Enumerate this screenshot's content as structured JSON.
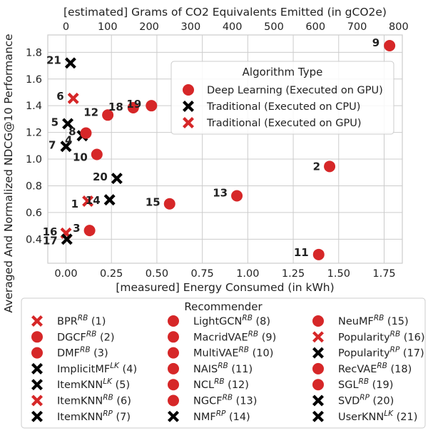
{
  "chart_data": {
    "type": "scatter",
    "xlabel": "[measured] Energy Consumed (in kWh)",
    "x2label": "[estimated] Grams of CO2 Equivalents Emitted (in gCO2e)",
    "ylabel": "Averaged And Normalized NDCG@10 Performance",
    "xlim": [
      -0.1,
      1.85
    ],
    "ylim": [
      0.22,
      1.93
    ],
    "x_ticks": [
      0.0,
      0.25,
      0.5,
      0.75,
      1.0,
      1.25,
      1.5,
      1.75
    ],
    "x_tick_labels": [
      "0.00",
      "0.25",
      "0.50",
      "0.75",
      "1.00",
      "1.25",
      "1.50",
      "1.75"
    ],
    "x2_ticks": [
      0,
      100,
      200,
      300,
      400,
      500,
      600,
      700,
      800
    ],
    "x2_tick_labels": [
      "0",
      "100",
      "200",
      "300",
      "400",
      "500",
      "600",
      "700",
      "800"
    ],
    "y_ticks": [
      0.4,
      0.6,
      0.8,
      1.0,
      1.2,
      1.4,
      1.6,
      1.8
    ],
    "y_tick_labels": [
      "0.4",
      "0.6",
      "0.8",
      "1.0",
      "1.2",
      "1.4",
      "1.6",
      "1.8"
    ],
    "grid": true,
    "colors": {
      "red": "#d62728",
      "black": "#000000",
      "grid": "#cccccc"
    },
    "algorithm_legend": {
      "title": "Algorithm Type",
      "placement": "upper-right",
      "entries": [
        {
          "label": "Deep Learning (Executed on GPU)",
          "marker": "circle",
          "color": "#d62728"
        },
        {
          "label": "Traditional (Executed on CPU)",
          "marker": "x",
          "color": "#000000"
        },
        {
          "label": "Traditional (Executed on GPU)",
          "marker": "x",
          "color": "#d62728"
        }
      ]
    },
    "recommender_legend": {
      "title": "Recommender",
      "placement": "below",
      "entries": [
        {
          "name": "BPR",
          "sup": "RB",
          "id": "(1)",
          "marker": "x",
          "color": "#d62728"
        },
        {
          "name": "DGCF",
          "sup": "RB",
          "id": "(2)",
          "marker": "circle",
          "color": "#d62728"
        },
        {
          "name": "DMF",
          "sup": "RB",
          "id": "(3)",
          "marker": "circle",
          "color": "#d62728"
        },
        {
          "name": "ImplicitMF",
          "sup": "LK",
          "id": "(4)",
          "marker": "x",
          "color": "#000000"
        },
        {
          "name": "ItemKNN",
          "sup": "LK",
          "id": "(5)",
          "marker": "x",
          "color": "#000000"
        },
        {
          "name": "ItemKNN",
          "sup": "RB",
          "id": "(6)",
          "marker": "x",
          "color": "#d62728"
        },
        {
          "name": "ItemKNN",
          "sup": "RP",
          "id": "(7)",
          "marker": "x",
          "color": "#000000"
        },
        {
          "name": "LightGCN",
          "sup": "RB",
          "id": "(8)",
          "marker": "circle",
          "color": "#d62728"
        },
        {
          "name": "MacridVAE",
          "sup": "RB",
          "id": "(9)",
          "marker": "circle",
          "color": "#d62728"
        },
        {
          "name": "MultiVAE",
          "sup": "RB",
          "id": "(10)",
          "marker": "circle",
          "color": "#d62728"
        },
        {
          "name": "NAIS",
          "sup": "RB",
          "id": "(11)",
          "marker": "circle",
          "color": "#d62728"
        },
        {
          "name": "NCL",
          "sup": "RB",
          "id": "(12)",
          "marker": "circle",
          "color": "#d62728"
        },
        {
          "name": "NGCF",
          "sup": "RB",
          "id": "(13)",
          "marker": "circle",
          "color": "#d62728"
        },
        {
          "name": "NMF",
          "sup": "RP",
          "id": "(14)",
          "marker": "x",
          "color": "#000000"
        },
        {
          "name": "NeuMF",
          "sup": "RB",
          "id": "(15)",
          "marker": "circle",
          "color": "#d62728"
        },
        {
          "name": "Popularity",
          "sup": "RB",
          "id": "(16)",
          "marker": "x",
          "color": "#d62728"
        },
        {
          "name": "Popularity",
          "sup": "RP",
          "id": "(17)",
          "marker": "x",
          "color": "#000000"
        },
        {
          "name": "RecVAE",
          "sup": "RB",
          "id": "(18)",
          "marker": "circle",
          "color": "#d62728"
        },
        {
          "name": "SGL",
          "sup": "RB",
          "id": "(19)",
          "marker": "circle",
          "color": "#d62728"
        },
        {
          "name": "SVD",
          "sup": "RP",
          "id": "(20)",
          "marker": "x",
          "color": "#000000"
        },
        {
          "name": "UserKNN",
          "sup": "LK",
          "id": "(21)",
          "marker": "x",
          "color": "#000000"
        }
      ]
    },
    "points": [
      {
        "label": "1",
        "x": 0.12,
        "y": 0.685,
        "marker": "x",
        "color": "#d62728"
      },
      {
        "label": "2",
        "x": 1.45,
        "y": 0.945,
        "marker": "circle",
        "color": "#d62728"
      },
      {
        "label": "3",
        "x": 0.13,
        "y": 0.465,
        "marker": "circle",
        "color": "#d62728"
      },
      {
        "label": "4",
        "x": 0.09,
        "y": 1.175,
        "marker": "x",
        "color": "#000000"
      },
      {
        "label": "5",
        "x": 0.01,
        "y": 1.265,
        "marker": "x",
        "color": "#000000"
      },
      {
        "label": "6",
        "x": 0.04,
        "y": 1.455,
        "marker": "x",
        "color": "#d62728"
      },
      {
        "label": "7",
        "x": 0.0,
        "y": 1.095,
        "marker": "x",
        "color": "#000000"
      },
      {
        "label": "8",
        "x": 0.11,
        "y": 1.195,
        "marker": "circle",
        "color": "#d62728"
      },
      {
        "label": "9",
        "x": 1.78,
        "y": 1.85,
        "marker": "circle",
        "color": "#d62728"
      },
      {
        "label": "10",
        "x": 0.17,
        "y": 1.035,
        "marker": "circle",
        "color": "#d62728"
      },
      {
        "label": "11",
        "x": 1.39,
        "y": 0.285,
        "marker": "circle",
        "color": "#d62728"
      },
      {
        "label": "12",
        "x": 0.23,
        "y": 1.33,
        "marker": "circle",
        "color": "#d62728"
      },
      {
        "label": "13",
        "x": 0.94,
        "y": 0.725,
        "marker": "circle",
        "color": "#d62728"
      },
      {
        "label": "14",
        "x": 0.24,
        "y": 0.695,
        "marker": "x",
        "color": "#000000"
      },
      {
        "label": "15",
        "x": 0.57,
        "y": 0.665,
        "marker": "circle",
        "color": "#d62728"
      },
      {
        "label": "16",
        "x": 0.0,
        "y": 0.445,
        "marker": "x",
        "color": "#d62728"
      },
      {
        "label": "17",
        "x": 0.005,
        "y": 0.4,
        "marker": "x",
        "color": "#000000"
      },
      {
        "label": "18",
        "x": 0.37,
        "y": 1.385,
        "marker": "circle",
        "color": "#d62728"
      },
      {
        "label": "19",
        "x": 0.47,
        "y": 1.4,
        "marker": "circle",
        "color": "#d62728"
      },
      {
        "label": "20",
        "x": 0.28,
        "y": 0.855,
        "marker": "x",
        "color": "#000000"
      },
      {
        "label": "21",
        "x": 0.025,
        "y": 1.72,
        "marker": "x",
        "color": "#000000"
      }
    ]
  }
}
